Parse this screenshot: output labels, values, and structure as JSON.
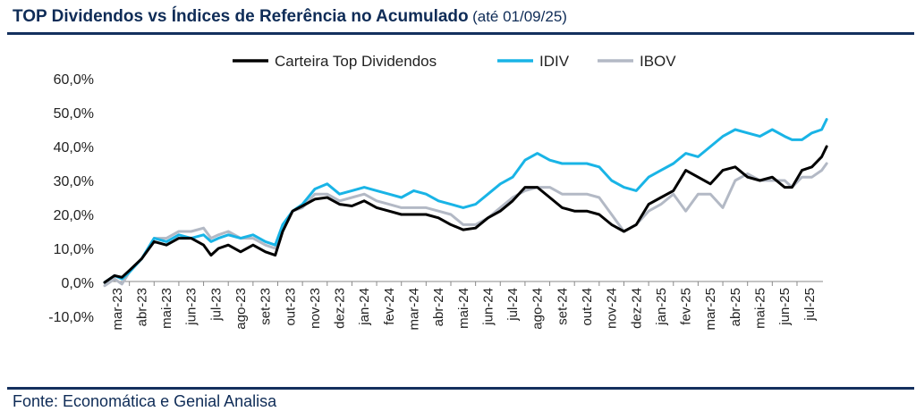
{
  "header": {
    "title": "TOP Dividendos vs Índices de Referência no Acumulado",
    "subtitle": "(até 01/09/25)"
  },
  "footer": {
    "source": "Fonte: Economática e Genial Analisa"
  },
  "chart_data": {
    "type": "line",
    "title": "TOP Dividendos vs Índices de Referência no Acumulado",
    "subtitle": "(até 01/09/25)",
    "xlabel": "",
    "ylabel": "",
    "y_tick_labels": [
      "-10,0%",
      "0,0%",
      "10,0%",
      "20,0%",
      "30,0%",
      "40,0%",
      "50,0%",
      "60,0%"
    ],
    "y_ticks": [
      -10,
      0,
      10,
      20,
      30,
      40,
      50,
      60
    ],
    "ylim": [
      -10,
      60
    ],
    "x_tick_labels": [
      "mar-23",
      "abr-23",
      "mai-23",
      "jun-23",
      "jul-23",
      "ago-23",
      "set-23",
      "out-23",
      "nov-23",
      "dez-23",
      "jan-24",
      "fev-24",
      "mar-24",
      "abr-24",
      "mai-24",
      "jun-24",
      "jul-24",
      "ago-24",
      "set-24",
      "out-24",
      "nov-24",
      "dez-24",
      "jan-25",
      "fev-25",
      "mar-25",
      "abr-25",
      "mai-25",
      "jun-25",
      "jul-25"
    ],
    "x_start_month": "mar-23",
    "x_end": "01/09/25",
    "grid": false,
    "legend_position": "top",
    "series": [
      {
        "name": "Carteira Top Dividendos",
        "color": "#000000",
        "points": [
          [
            0,
            0
          ],
          [
            0.4,
            2
          ],
          [
            0.7,
            1.5
          ],
          [
            1,
            3.5
          ],
          [
            1.5,
            7
          ],
          [
            2,
            12
          ],
          [
            2.5,
            11
          ],
          [
            3,
            13
          ],
          [
            3.5,
            13
          ],
          [
            4,
            11
          ],
          [
            4.3,
            8
          ],
          [
            4.6,
            10
          ],
          [
            5,
            11
          ],
          [
            5.5,
            9
          ],
          [
            6,
            11
          ],
          [
            6.5,
            9
          ],
          [
            6.9,
            8
          ],
          [
            7.2,
            15
          ],
          [
            7.6,
            21
          ],
          [
            8,
            22.5
          ],
          [
            8.5,
            24.5
          ],
          [
            9,
            25
          ],
          [
            9.5,
            23
          ],
          [
            10,
            22.5
          ],
          [
            10.5,
            24
          ],
          [
            11,
            22
          ],
          [
            11.5,
            21
          ],
          [
            12,
            20
          ],
          [
            12.5,
            20
          ],
          [
            13,
            20
          ],
          [
            13.5,
            19
          ],
          [
            14,
            17
          ],
          [
            14.5,
            15.5
          ],
          [
            15,
            16
          ],
          [
            15.5,
            19
          ],
          [
            16,
            21
          ],
          [
            16.5,
            24
          ],
          [
            17,
            28
          ],
          [
            17.5,
            28
          ],
          [
            18,
            25
          ],
          [
            18.5,
            22
          ],
          [
            19,
            21
          ],
          [
            19.5,
            21
          ],
          [
            20,
            20
          ],
          [
            20.5,
            17
          ],
          [
            21,
            15
          ],
          [
            21.5,
            17
          ],
          [
            22,
            23
          ],
          [
            22.5,
            25
          ],
          [
            23,
            27
          ],
          [
            23.5,
            33
          ],
          [
            24,
            31
          ],
          [
            24.5,
            29
          ],
          [
            25,
            33
          ],
          [
            25.5,
            34
          ],
          [
            26,
            31
          ],
          [
            26.5,
            30
          ],
          [
            27,
            31
          ],
          [
            27.5,
            28
          ],
          [
            27.8,
            28
          ],
          [
            28.2,
            33
          ],
          [
            28.6,
            34
          ],
          [
            29,
            37
          ],
          [
            29.2,
            40
          ]
        ]
      },
      {
        "name": "IDIV",
        "color": "#19b4e6",
        "points": [
          [
            0,
            0
          ],
          [
            0.4,
            2
          ],
          [
            0.7,
            1
          ],
          [
            1,
            3
          ],
          [
            1.5,
            7
          ],
          [
            2,
            13
          ],
          [
            2.5,
            12
          ],
          [
            3,
            14
          ],
          [
            3.5,
            13
          ],
          [
            4,
            14
          ],
          [
            4.3,
            12
          ],
          [
            4.6,
            13
          ],
          [
            5,
            14
          ],
          [
            5.5,
            13
          ],
          [
            6,
            14
          ],
          [
            6.5,
            12
          ],
          [
            6.9,
            11
          ],
          [
            7.2,
            17
          ],
          [
            7.6,
            21
          ],
          [
            8,
            23
          ],
          [
            8.5,
            27.5
          ],
          [
            9,
            29
          ],
          [
            9.5,
            26
          ],
          [
            10,
            27
          ],
          [
            10.5,
            28
          ],
          [
            11,
            27
          ],
          [
            11.5,
            26
          ],
          [
            12,
            25
          ],
          [
            12.5,
            27
          ],
          [
            13,
            26
          ],
          [
            13.5,
            24
          ],
          [
            14,
            23
          ],
          [
            14.5,
            22
          ],
          [
            15,
            23
          ],
          [
            15.5,
            26
          ],
          [
            16,
            29
          ],
          [
            16.5,
            31
          ],
          [
            17,
            36
          ],
          [
            17.5,
            38
          ],
          [
            18,
            36
          ],
          [
            18.5,
            35
          ],
          [
            19,
            35
          ],
          [
            19.5,
            35
          ],
          [
            20,
            34
          ],
          [
            20.5,
            30
          ],
          [
            21,
            28
          ],
          [
            21.5,
            27
          ],
          [
            22,
            31
          ],
          [
            22.5,
            33
          ],
          [
            23,
            35
          ],
          [
            23.5,
            38
          ],
          [
            24,
            37
          ],
          [
            24.5,
            40
          ],
          [
            25,
            43
          ],
          [
            25.5,
            45
          ],
          [
            26,
            44
          ],
          [
            26.5,
            43
          ],
          [
            27,
            45
          ],
          [
            27.5,
            43
          ],
          [
            27.8,
            42
          ],
          [
            28.2,
            42
          ],
          [
            28.6,
            44
          ],
          [
            29,
            45
          ],
          [
            29.2,
            48
          ]
        ]
      },
      {
        "name": "IBOV",
        "color": "#b3b9c5",
        "points": [
          [
            0,
            -1
          ],
          [
            0.4,
            1
          ],
          [
            0.7,
            -0.5
          ],
          [
            1,
            3
          ],
          [
            1.5,
            7
          ],
          [
            2,
            13
          ],
          [
            2.5,
            13
          ],
          [
            3,
            15
          ],
          [
            3.5,
            15
          ],
          [
            4,
            16
          ],
          [
            4.3,
            13
          ],
          [
            4.6,
            14
          ],
          [
            5,
            15
          ],
          [
            5.5,
            13
          ],
          [
            6,
            13
          ],
          [
            6.5,
            11
          ],
          [
            6.9,
            10
          ],
          [
            7.2,
            16
          ],
          [
            7.6,
            21
          ],
          [
            8,
            22
          ],
          [
            8.5,
            26
          ],
          [
            9,
            26
          ],
          [
            9.5,
            24
          ],
          [
            10,
            25
          ],
          [
            10.5,
            26
          ],
          [
            11,
            24
          ],
          [
            11.5,
            23
          ],
          [
            12,
            22
          ],
          [
            12.5,
            22
          ],
          [
            13,
            22
          ],
          [
            13.5,
            21
          ],
          [
            14,
            20
          ],
          [
            14.5,
            17
          ],
          [
            15,
            17
          ],
          [
            15.5,
            19
          ],
          [
            16,
            22
          ],
          [
            16.5,
            25
          ],
          [
            17,
            27
          ],
          [
            17.5,
            28
          ],
          [
            18,
            28
          ],
          [
            18.5,
            26
          ],
          [
            19,
            26
          ],
          [
            19.5,
            26
          ],
          [
            20,
            25
          ],
          [
            20.5,
            20
          ],
          [
            21,
            15
          ],
          [
            21.5,
            17
          ],
          [
            22,
            21
          ],
          [
            22.5,
            23
          ],
          [
            23,
            26
          ],
          [
            23.5,
            21
          ],
          [
            24,
            26
          ],
          [
            24.5,
            26
          ],
          [
            25,
            22
          ],
          [
            25.5,
            30
          ],
          [
            26,
            32
          ],
          [
            26.5,
            30
          ],
          [
            27,
            30
          ],
          [
            27.5,
            30
          ],
          [
            27.8,
            28
          ],
          [
            28.2,
            31
          ],
          [
            28.6,
            31
          ],
          [
            29,
            33
          ],
          [
            29.2,
            35
          ]
        ]
      }
    ]
  }
}
